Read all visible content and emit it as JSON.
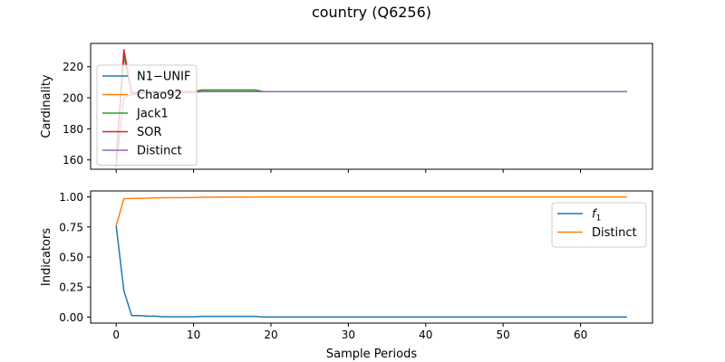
{
  "figure": {
    "title": "country (Q6256)"
  },
  "chart_data": [
    {
      "type": "line",
      "ylabel": "Cardinality",
      "xlabel": "",
      "xlim": [
        -3.3,
        69.3
      ],
      "ylim": [
        154,
        235
      ],
      "xticks": [
        0,
        10,
        20,
        30,
        40,
        50,
        60
      ],
      "yticks": [
        160,
        180,
        200,
        220
      ],
      "legend": "top-left",
      "series": [
        {
          "name": "N1−UNIF",
          "color": "#1f77b4",
          "points": [
            [
              0,
              160
            ],
            [
              1,
              227
            ],
            [
              2,
              203
            ],
            [
              3,
              203.5
            ],
            [
              4,
              203.5
            ],
            [
              5,
              204
            ],
            [
              9,
              204
            ],
            [
              10,
              204
            ],
            [
              12,
              204
            ],
            [
              18,
              204
            ],
            [
              19,
              204
            ],
            [
              66,
              204
            ]
          ]
        },
        {
          "name": "Chao92",
          "color": "#ff7f0e",
          "points": [
            [
              0,
              160
            ],
            [
              1,
              228
            ],
            [
              2,
              203
            ],
            [
              3,
              203.5
            ],
            [
              4,
              203.5
            ],
            [
              5,
              204
            ],
            [
              10,
              204
            ],
            [
              11,
              205
            ],
            [
              18,
              205
            ],
            [
              19,
              204
            ],
            [
              66,
              204
            ]
          ]
        },
        {
          "name": "Jack1",
          "color": "#2ca02c",
          "points": [
            [
              0,
              160
            ],
            [
              1,
              228
            ],
            [
              2,
              203
            ],
            [
              3,
              203.5
            ],
            [
              4,
              203.5
            ],
            [
              5,
              204
            ],
            [
              10,
              204
            ],
            [
              11,
              205
            ],
            [
              18,
              205
            ],
            [
              19,
              204
            ],
            [
              66,
              204
            ]
          ]
        },
        {
          "name": "SOR",
          "color": "#d62728",
          "points": [
            [
              0,
              160
            ],
            [
              1,
              231
            ],
            [
              2,
              203
            ],
            [
              3,
              203.5
            ],
            [
              4,
              203.5
            ],
            [
              5,
              204
            ],
            [
              10,
              204
            ],
            [
              11,
              204
            ],
            [
              18,
              204
            ],
            [
              19,
              204
            ],
            [
              66,
              204
            ]
          ]
        },
        {
          "name": "Distinct",
          "color": "#9467bd",
          "points": [
            [
              0,
              156
            ],
            [
              1,
              200
            ],
            [
              2,
              202
            ],
            [
              3,
              202.5
            ],
            [
              4,
              203
            ],
            [
              5,
              203
            ],
            [
              10,
              203.5
            ],
            [
              11,
              204
            ],
            [
              66,
              204
            ]
          ]
        }
      ]
    },
    {
      "type": "line",
      "ylabel": "Indicators",
      "xlabel": "Sample Periods",
      "xlim": [
        -3.3,
        69.3
      ],
      "ylim": [
        -0.05,
        1.05
      ],
      "xticks": [
        0,
        10,
        20,
        30,
        40,
        50,
        60
      ],
      "yticks": [
        0.0,
        0.25,
        0.5,
        0.75,
        1.0
      ],
      "ytick_labels": [
        "0.00",
        "0.25",
        "0.50",
        "0.75",
        "1.00"
      ],
      "legend": "top-right",
      "series": [
        {
          "name": "f1",
          "color": "#1f77b4",
          "points": [
            [
              0,
              0.76
            ],
            [
              1,
              0.22
            ],
            [
              2,
              0.012
            ],
            [
              3,
              0.012
            ],
            [
              4,
              0.008
            ],
            [
              5,
              0.007
            ],
            [
              6,
              0.003
            ],
            [
              10,
              0.003
            ],
            [
              11,
              0.006
            ],
            [
              18,
              0.006
            ],
            [
              19,
              0.001
            ],
            [
              66,
              0.001
            ]
          ]
        },
        {
          "name": "Distinct",
          "color": "#ff7f0e",
          "points": [
            [
              0,
              0.76
            ],
            [
              1,
              0.985
            ],
            [
              2,
              0.988
            ],
            [
              3,
              0.988
            ],
            [
              4,
              0.99
            ],
            [
              5,
              0.993
            ],
            [
              10,
              0.995
            ],
            [
              11,
              0.998
            ],
            [
              19,
              1.0
            ],
            [
              66,
              1.0
            ]
          ]
        }
      ]
    }
  ]
}
